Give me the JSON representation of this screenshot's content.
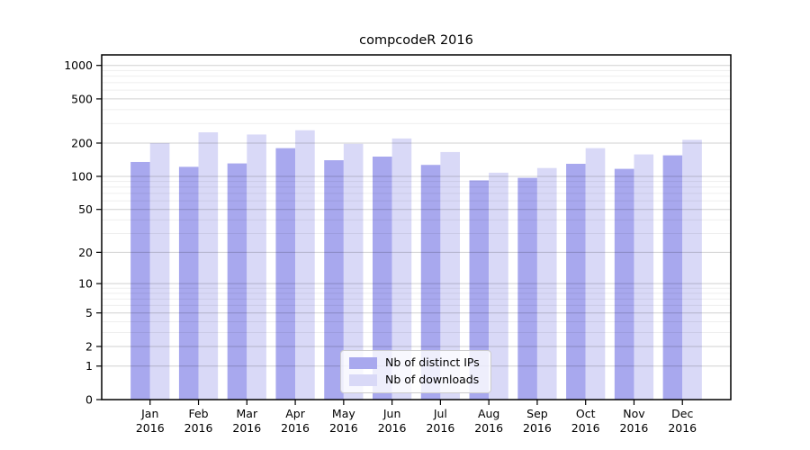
{
  "chart_data": {
    "type": "bar",
    "title": "compcodeR 2016",
    "yscale": "log1p",
    "ylim": [
      0,
      1250
    ],
    "yticks": [
      0,
      1,
      2,
      5,
      10,
      20,
      50,
      100,
      200,
      500,
      1000
    ],
    "minor_grid_subs": [
      3,
      4,
      6,
      7,
      8,
      9
    ],
    "grid": true,
    "legend_position": "lower center",
    "categories": [
      "Jan",
      "Feb",
      "Mar",
      "Apr",
      "May",
      "Jun",
      "Jul",
      "Aug",
      "Sep",
      "Oct",
      "Nov",
      "Dec"
    ],
    "year": "2016",
    "series": [
      {
        "key": "distinct-ips",
        "name": "Nb of distinct IPs",
        "color": "#a8a8ee",
        "values": [
          135,
          122,
          131,
          180,
          140,
          151,
          127,
          92,
          97,
          130,
          117,
          155
        ]
      },
      {
        "key": "downloads",
        "name": "Nb of downloads",
        "color": "#d9d9f7",
        "values": [
          200,
          250,
          239,
          261,
          197,
          220,
          166,
          108,
          119,
          180,
          158,
          214
        ]
      }
    ]
  }
}
